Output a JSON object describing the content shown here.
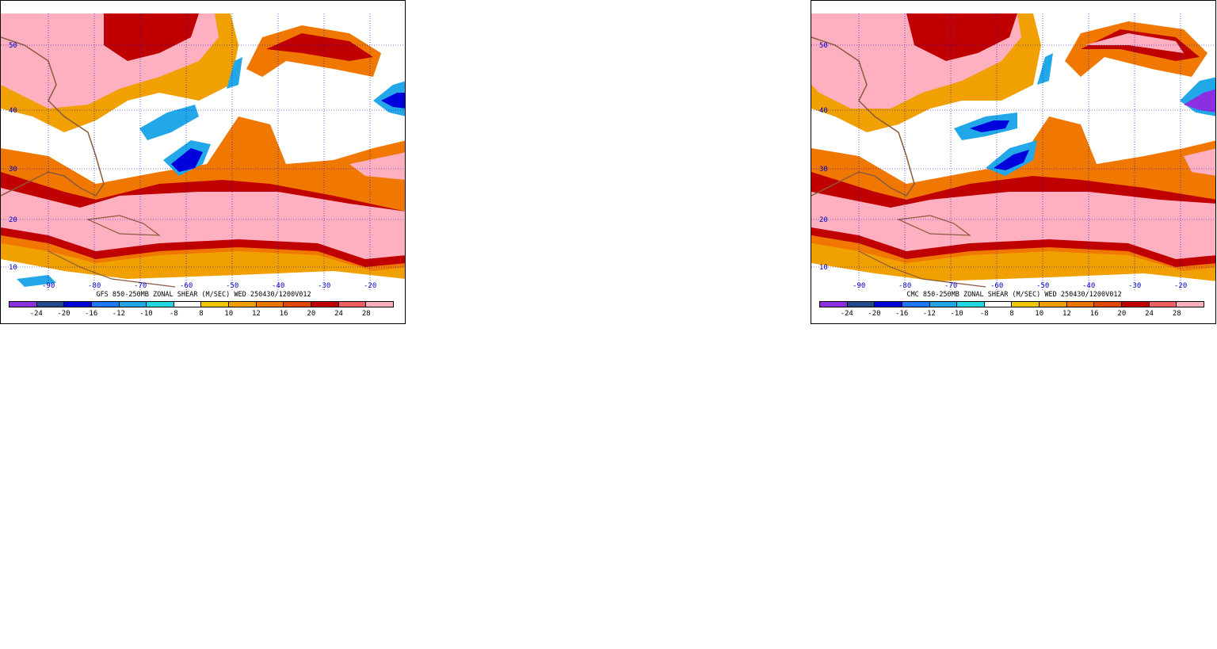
{
  "panels": [
    {
      "id": "gfs",
      "title": "GFS 850-250MB ZONAL SHEAR (M/SEC) WED 250430/1200V012",
      "lat_labels": [
        "50",
        "40",
        "30",
        "20",
        "10"
      ],
      "lon_labels": [
        "-90",
        "-80",
        "-70",
        "-60",
        "-50",
        "-40",
        "-30",
        "-20"
      ]
    },
    {
      "id": "cmc",
      "title": "CMC 850-250MB ZONAL SHEAR (M/SEC) WED 250430/1200V012",
      "lat_labels": [
        "50",
        "40",
        "30",
        "20",
        "10"
      ],
      "lon_labels": [
        "-90",
        "-80",
        "-70",
        "-60",
        "-50",
        "-40",
        "-30",
        "-20"
      ]
    }
  ],
  "legend": {
    "labels": [
      "-24",
      "-20",
      "-16",
      "-12",
      "-10",
      "-8",
      "8",
      "10",
      "12",
      "16",
      "20",
      "24",
      "28"
    ],
    "colors": [
      "#8b2fe0",
      "#1e4a8c",
      "#0000dc",
      "#1e78f0",
      "#22a8e8",
      "#22d8e0",
      "#ffffff",
      "#f0c800",
      "#f0a000",
      "#f07800",
      "#e04800",
      "#c00000",
      "#f06060",
      "#ffb0c0"
    ]
  },
  "colors": {
    "map_pink": "#ffb0c0",
    "map_salmon": "#f06060",
    "map_darkred": "#c00000",
    "map_orange": "#f07800",
    "map_lightorange": "#f0a000",
    "map_yellow": "#f0c800",
    "map_cyan": "#22d8e0",
    "map_lightblue": "#22a8e8",
    "map_blue": "#1e78f0",
    "map_darkblue": "#0000dc",
    "map_purple": "#8b2fe0",
    "coast": "#8b5a3c",
    "grid": "#0000c8"
  }
}
